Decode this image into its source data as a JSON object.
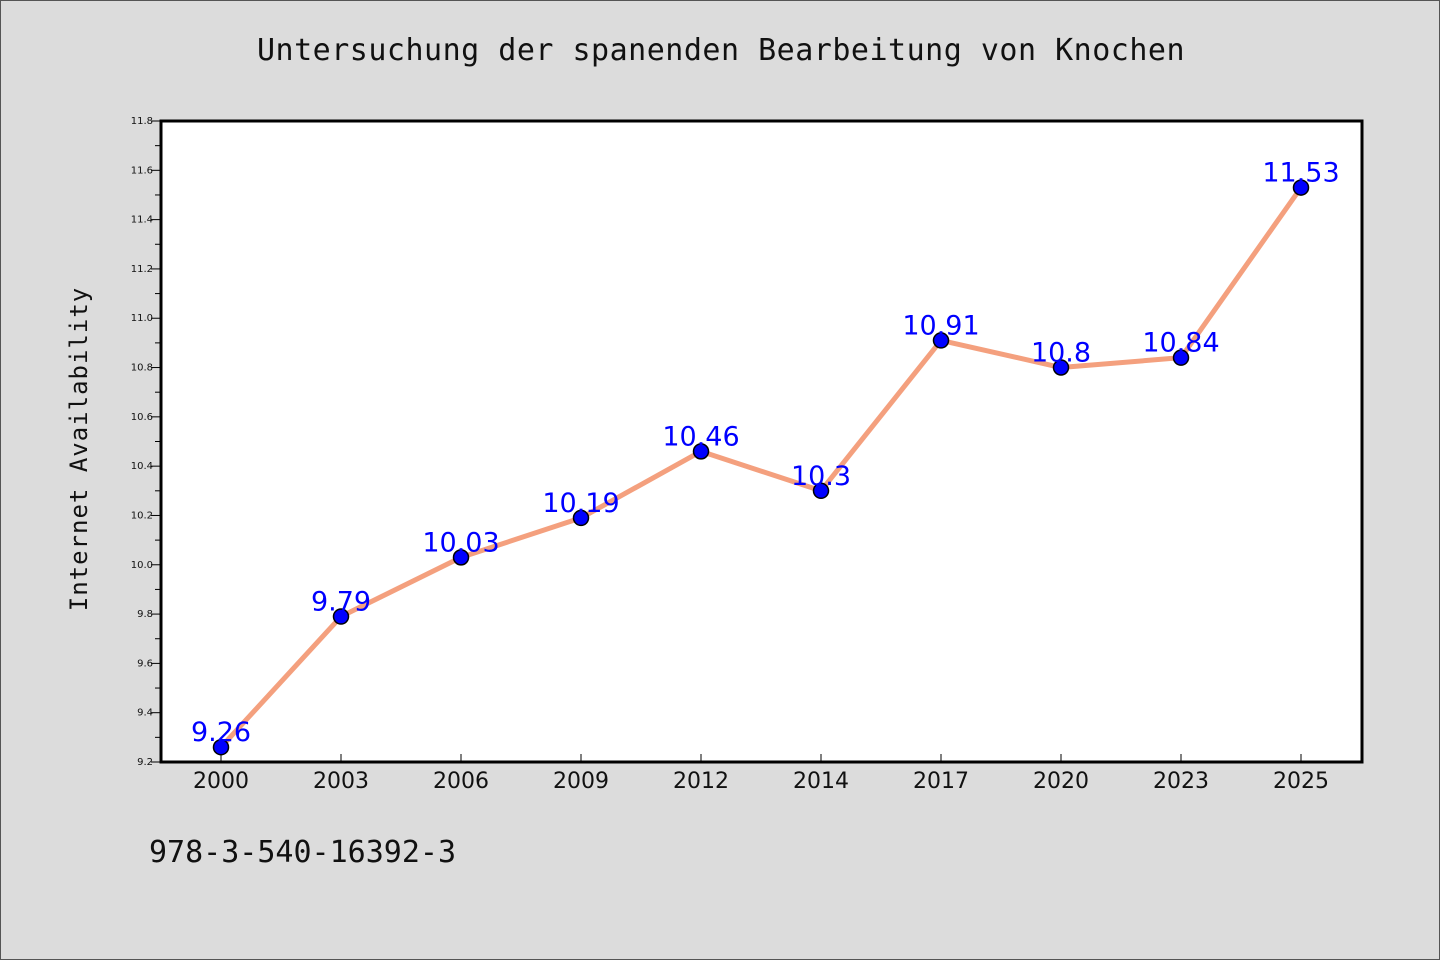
{
  "chart_data": {
    "type": "line",
    "title": "Untersuchung der spanenden Bearbeitung von Knochen",
    "xlabel": "",
    "ylabel": "Internet Availability",
    "categories": [
      "2000",
      "2003",
      "2006",
      "2009",
      "2012",
      "2014",
      "2017",
      "2020",
      "2023",
      "2025"
    ],
    "series": [
      {
        "values": [
          9.26,
          9.79,
          10.03,
          10.19,
          10.46,
          10.3,
          10.91,
          10.8,
          10.84,
          11.53
        ],
        "line_color": "#f4a07e",
        "marker_color": "#0000ff"
      }
    ],
    "data_labels": [
      "9.26",
      "9.79",
      "10.03",
      "10.19",
      "10.46",
      "10.3",
      "10.91",
      "10.8",
      "10.84",
      "11.53"
    ],
    "ylim": [
      9.2,
      11.8
    ],
    "yticks": [
      "9.2",
      "9.4",
      "9.6",
      "9.8",
      "10.0",
      "10.2",
      "10.4",
      "10.6",
      "10.8",
      "11.0",
      "11.2",
      "11.4",
      "11.6",
      "11.8"
    ],
    "grid": false,
    "legend": "none",
    "label_color": "#0000ff"
  },
  "footnote": "978-3-540-16392-3"
}
